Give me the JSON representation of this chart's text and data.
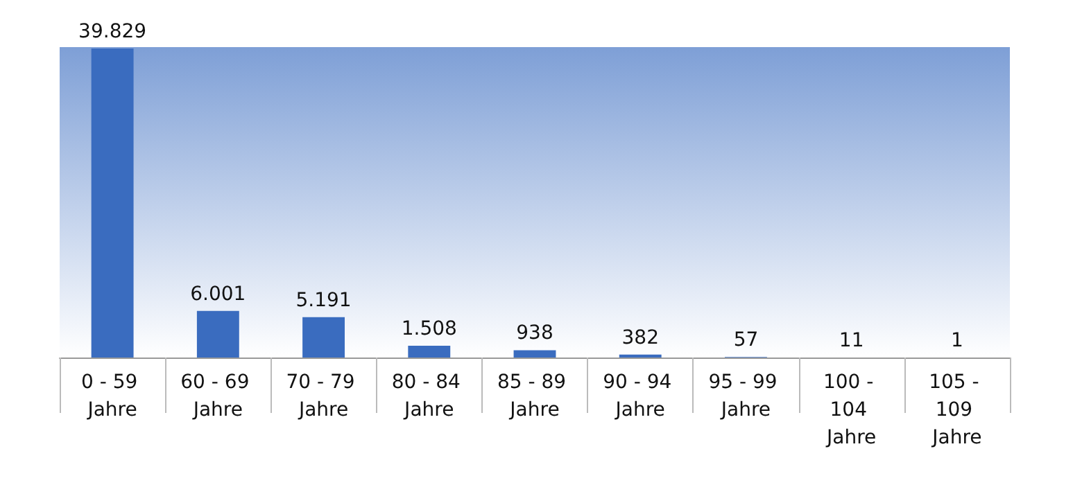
{
  "chart_data": {
    "type": "bar",
    "categories": [
      "0 - 59 Jahre",
      "60 - 69 Jahre",
      "70 - 79 Jahre",
      "80 - 84 Jahre",
      "85 - 89 Jahre",
      "90 - 94 Jahre",
      "95 - 99 Jahre",
      "100 - 104 Jahre",
      "105 - 109 Jahre"
    ],
    "values": [
      39829,
      6001,
      5191,
      1508,
      938,
      382,
      57,
      11,
      1
    ],
    "value_labels": [
      "39.829",
      "6.001",
      "5.191",
      "1.508",
      "938",
      "382",
      "57",
      "11",
      "1"
    ],
    "color": "#3a6cbf",
    "tick_labels": "x"
  }
}
